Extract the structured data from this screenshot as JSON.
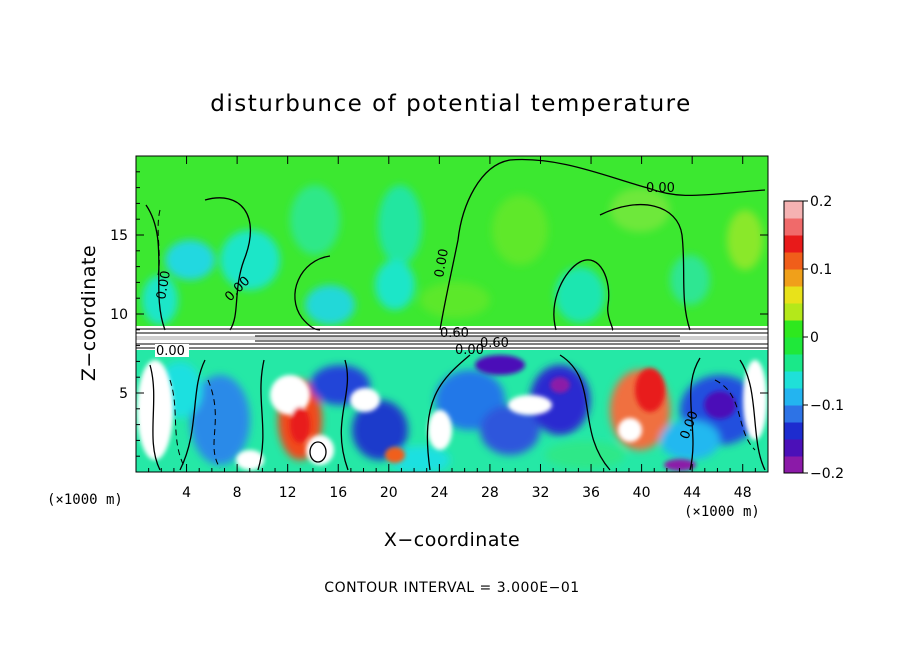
{
  "chart_data": {
    "type": "heatmap",
    "title": "disturbunce of potential temperature",
    "xlabel": "X−coordinate",
    "ylabel": "Z−coordinate",
    "x_unit": "(×1000 m)",
    "xlim": [
      0,
      50
    ],
    "ylim": [
      0,
      20
    ],
    "x_ticks": [
      "4",
      "8",
      "12",
      "16",
      "20",
      "24",
      "28",
      "32",
      "36",
      "40",
      "44",
      "48"
    ],
    "y_ticks": [
      "5",
      "10",
      "15"
    ],
    "colorbar": {
      "range": [
        -0.2,
        0.2
      ],
      "tick_labels": [
        "0.2",
        "0.1",
        "0",
        "−0.1",
        "−0.2"
      ],
      "colors": [
        "#8b1aa8",
        "#4b10b8",
        "#1d2ccf",
        "#2d73e6",
        "#23b4f0",
        "#1fe0d8",
        "#1ae889",
        "#1fe83a",
        "#2ee81e",
        "#b4e81a",
        "#e8e21a",
        "#f0a01a",
        "#f05e1a",
        "#e81a1a",
        "#f06a6a",
        "#f5b2b2"
      ]
    },
    "contour_labels": [
      "0.00",
      "0.00",
      "0.00",
      "0.00",
      "0.00",
      "0.60",
      "0.60",
      "0.00",
      "0.00"
    ],
    "footer": "CONTOUR INTERVAL = 3.000E−01"
  }
}
